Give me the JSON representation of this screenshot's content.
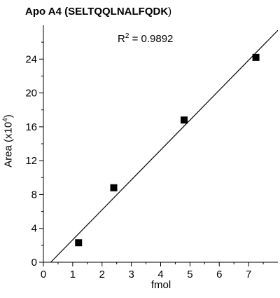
{
  "chart_data": {
    "type": "scatter",
    "title_main": "Apo A4 (SELTQQLNALFQDK",
    "title_close": ")",
    "annotation_r2_base": "R",
    "annotation_r2_exp": "2",
    "annotation_r2_value": " = 0.9892",
    "xlabel": "fmol",
    "ylabel_base": "Area (x10",
    "ylabel_exp": "4",
    "ylabel_close": ")",
    "xlim": [
      0,
      8
    ],
    "ylim": [
      0,
      28
    ],
    "x_ticks": [
      0,
      1,
      2,
      3,
      4,
      5,
      6,
      7
    ],
    "y_ticks": [
      0,
      4,
      8,
      12,
      16,
      20,
      24
    ],
    "series": [
      {
        "points": [
          {
            "x": 1.2,
            "y": 2.3
          },
          {
            "x": 2.4,
            "y": 8.8
          },
          {
            "x": 4.8,
            "y": 16.8
          },
          {
            "x": 7.25,
            "y": 24.2
          }
        ],
        "marker": "square",
        "color": "#000000"
      }
    ],
    "trendline": {
      "type": "linear",
      "x0": 0.25,
      "y0": 0,
      "x1": 8.0,
      "y1": 27.4
    },
    "grid": false,
    "legend": "none"
  }
}
